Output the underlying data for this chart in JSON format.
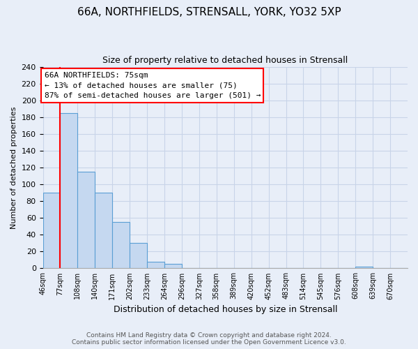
{
  "title": "66A, NORTHFIELDS, STRENSALL, YORK, YO32 5XP",
  "subtitle": "Size of property relative to detached houses in Strensall",
  "xlabel": "Distribution of detached houses by size in Strensall",
  "ylabel": "Number of detached properties",
  "bin_labels": [
    "46sqm",
    "77sqm",
    "108sqm",
    "140sqm",
    "171sqm",
    "202sqm",
    "233sqm",
    "264sqm",
    "296sqm",
    "327sqm",
    "358sqm",
    "389sqm",
    "420sqm",
    "452sqm",
    "483sqm",
    "514sqm",
    "545sqm",
    "576sqm",
    "608sqm",
    "639sqm",
    "670sqm"
  ],
  "bar_heights": [
    90,
    185,
    115,
    90,
    55,
    30,
    8,
    5,
    0,
    0,
    0,
    0,
    0,
    0,
    0,
    0,
    0,
    0,
    2,
    0,
    0
  ],
  "bar_color": "#c5d8f0",
  "bar_edge_color": "#5a9fd4",
  "marker_label": "66A NORTHFIELDS: 75sqm",
  "annotation_line1": "← 13% of detached houses are smaller (75)",
  "annotation_line2": "87% of semi-detached houses are larger (501) →",
  "marker_color": "red",
  "ylim": [
    0,
    240
  ],
  "yticks": [
    0,
    20,
    40,
    60,
    80,
    100,
    120,
    140,
    160,
    180,
    200,
    220,
    240
  ],
  "footer1": "Contains HM Land Registry data © Crown copyright and database right 2024.",
  "footer2": "Contains public sector information licensed under the Open Government Licence v3.0.",
  "bg_color": "#e8eef8",
  "plot_bg_color": "#e8eef8",
  "grid_color": "#c8d4e8"
}
